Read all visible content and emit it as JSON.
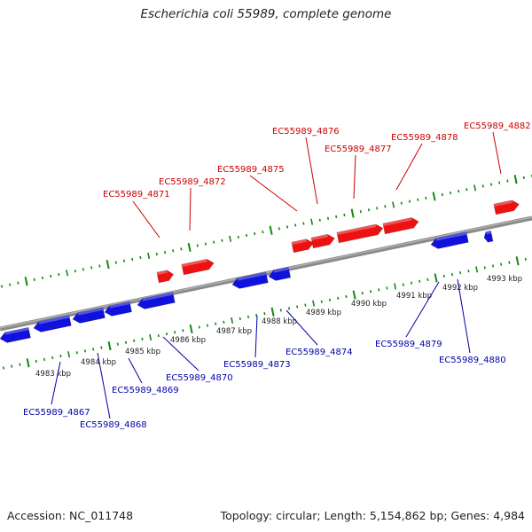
{
  "title": "Escherichia coli 55989, complete genome",
  "footer": {
    "accession": "Accession: NC_011748",
    "stats": "Topology: circular; Length: 5,154,862 bp; Genes: 4,984"
  },
  "colors": {
    "forward_gene": "#ee1111",
    "reverse_gene": "#1111dd",
    "forward_label": "#cc0000",
    "reverse_label": "#0000aa",
    "backbone": "#8a8a8a",
    "tick": "#118811"
  },
  "kbp_labels": [
    "4983 kbp",
    "4984 kbp",
    "4985 kbp",
    "4986 kbp",
    "4987 kbp",
    "4988 kbp",
    "4989 kbp",
    "4990 kbp",
    "4991 kbp",
    "4992 kbp",
    "4993 kbp"
  ],
  "forward_genes": [
    "EC55989_4871",
    "EC55989_4872",
    "EC55989_4875",
    "EC55989_4876",
    "EC55989_4877",
    "EC55989_4878",
    "EC55989_4882"
  ],
  "reverse_genes": [
    "EC55989_4867",
    "EC55989_4868",
    "EC55989_4869",
    "EC55989_4870",
    "EC55989_4873",
    "EC55989_4874",
    "EC55989_4879",
    "EC55989_4880"
  ]
}
